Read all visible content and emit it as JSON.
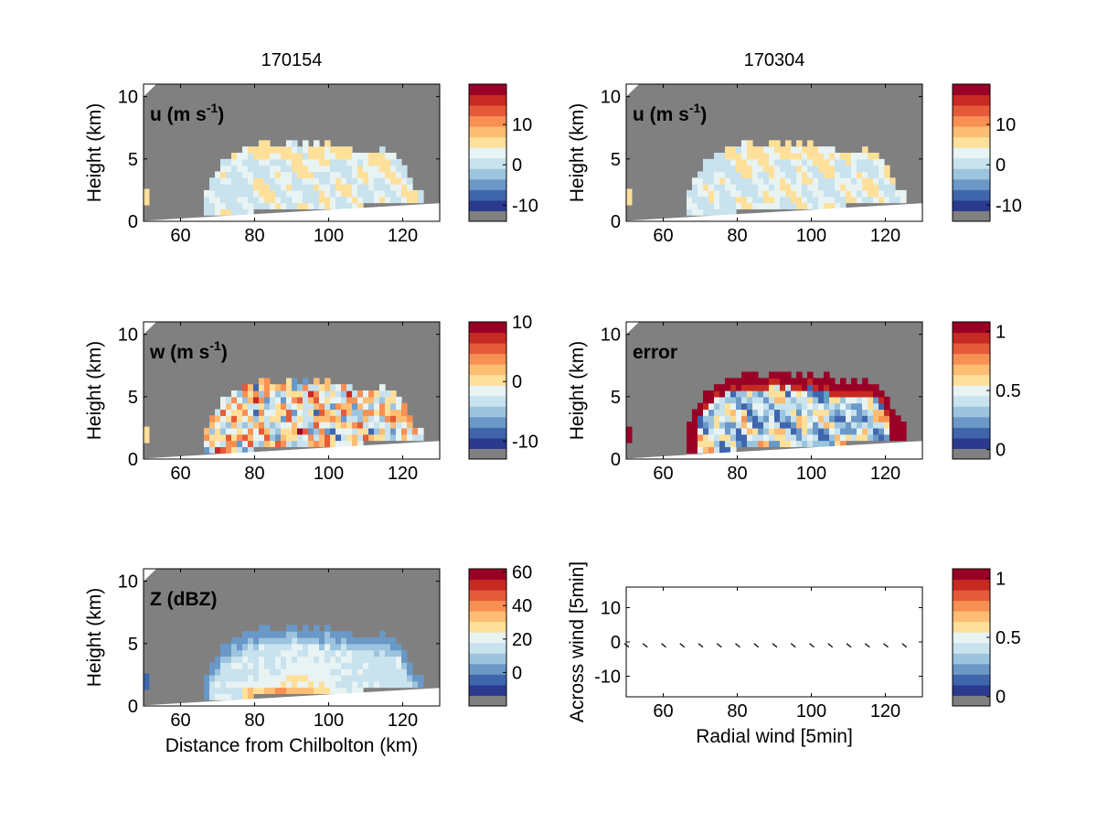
{
  "colors": {
    "gray_mask": "#808080",
    "colormap": [
      "#2b3a8f",
      "#3f66ad",
      "#6a98c7",
      "#9cc4de",
      "#c8e2ee",
      "#e8f3f3",
      "#ffe09a",
      "#fdbd73",
      "#f89053",
      "#e55a38",
      "#c62a22",
      "#9a0026"
    ]
  },
  "chart_data": [
    {
      "type": "heatmap",
      "id": "u_left",
      "title": "170154",
      "inner_label": "u (m s",
      "inner_sup": "-1",
      "inner_suffix": ")",
      "xlabel": "",
      "ylabel": "Height (km)",
      "xlim": [
        50,
        130
      ],
      "ylim": [
        0,
        11
      ],
      "xticks": [
        "60",
        "80",
        "100",
        "120"
      ],
      "yticks": [
        "0",
        "5",
        "10"
      ],
      "colorbar": {
        "ticks": [
          "10",
          "0",
          "-10"
        ],
        "tick_values": [
          10,
          0,
          -10
        ],
        "range": [
          -14,
          20
        ]
      },
      "field": "u"
    },
    {
      "type": "heatmap",
      "id": "u_right",
      "title": "170304",
      "inner_label": "u (m s",
      "inner_sup": "-1",
      "inner_suffix": ")",
      "xlabel": "",
      "ylabel": "Height (km)",
      "xlim": [
        50,
        130
      ],
      "ylim": [
        0,
        11
      ],
      "xticks": [
        "60",
        "80",
        "100",
        "120"
      ],
      "yticks": [
        "0",
        "5",
        "10"
      ],
      "colorbar": {
        "ticks": [
          "10",
          "0",
          "-10"
        ],
        "tick_values": [
          10,
          0,
          -10
        ],
        "range": [
          -14,
          20
        ]
      },
      "field": "u2"
    },
    {
      "type": "heatmap",
      "id": "w_left",
      "title": "",
      "inner_label": "w (m s",
      "inner_sup": "-1",
      "inner_suffix": ")",
      "xlabel": "",
      "ylabel": "Height (km)",
      "xlim": [
        50,
        130
      ],
      "ylim": [
        0,
        11
      ],
      "xticks": [
        "60",
        "80",
        "100",
        "120"
      ],
      "yticks": [
        "0",
        "5",
        "10"
      ],
      "colorbar": {
        "ticks": [
          "10",
          "0",
          "-10"
        ],
        "tick_values": [
          10,
          0,
          -10
        ],
        "range": [
          -13,
          10
        ]
      },
      "field": "w"
    },
    {
      "type": "heatmap",
      "id": "error_right",
      "title": "",
      "inner_label": "error",
      "inner_sup": "",
      "inner_suffix": "",
      "xlabel": "",
      "ylabel": "Height (km)",
      "xlim": [
        50,
        130
      ],
      "ylim": [
        0,
        11
      ],
      "xticks": [
        "60",
        "80",
        "100",
        "120"
      ],
      "yticks": [
        "0",
        "5",
        "10"
      ],
      "colorbar": {
        "ticks": [
          "1",
          "0.5",
          "0"
        ],
        "tick_values": [
          1,
          0.5,
          0
        ],
        "range": [
          -0.08,
          1.08
        ]
      },
      "field": "err"
    },
    {
      "type": "heatmap",
      "id": "z_left",
      "title": "",
      "inner_label": "Z (dBZ)",
      "inner_sup": "",
      "inner_suffix": "",
      "xlabel": "Distance from Chilbolton (km)",
      "ylabel": "Height (km)",
      "xlim": [
        50,
        130
      ],
      "ylim": [
        0,
        11
      ],
      "xticks": [
        "60",
        "80",
        "100",
        "120"
      ],
      "yticks": [
        "0",
        "5",
        "10"
      ],
      "colorbar": {
        "ticks": [
          "60",
          "40",
          "20",
          "0"
        ],
        "tick_values": [
          60,
          40,
          20,
          0
        ],
        "range": [
          -20,
          62
        ]
      },
      "field": "z"
    },
    {
      "type": "scatter",
      "id": "quiver_right",
      "title": "",
      "inner_label": "",
      "inner_sup": "",
      "inner_suffix": "",
      "xlabel": "Radial wind [5min]",
      "ylabel": "Across wind [5min]",
      "xlim": [
        50,
        130
      ],
      "ylim": [
        -16,
        16
      ],
      "xticks": [
        "60",
        "80",
        "100",
        "120"
      ],
      "yticks": [
        "10",
        "0",
        "-10"
      ],
      "colorbar": {
        "ticks": [
          "1",
          "0.5",
          "0"
        ],
        "tick_values": [
          1,
          0.5,
          0
        ],
        "range": [
          -0.08,
          1.08
        ]
      },
      "arrows_x": [
        50,
        55,
        60,
        65,
        70,
        75,
        80,
        85,
        90,
        95,
        100,
        105,
        110,
        115,
        120,
        125
      ],
      "arrows_y": [
        -1,
        -1,
        -1,
        -1,
        -1,
        -1,
        -1,
        -1,
        -1,
        -1,
        -1,
        -1,
        -1,
        -1,
        -1,
        -1
      ]
    }
  ]
}
